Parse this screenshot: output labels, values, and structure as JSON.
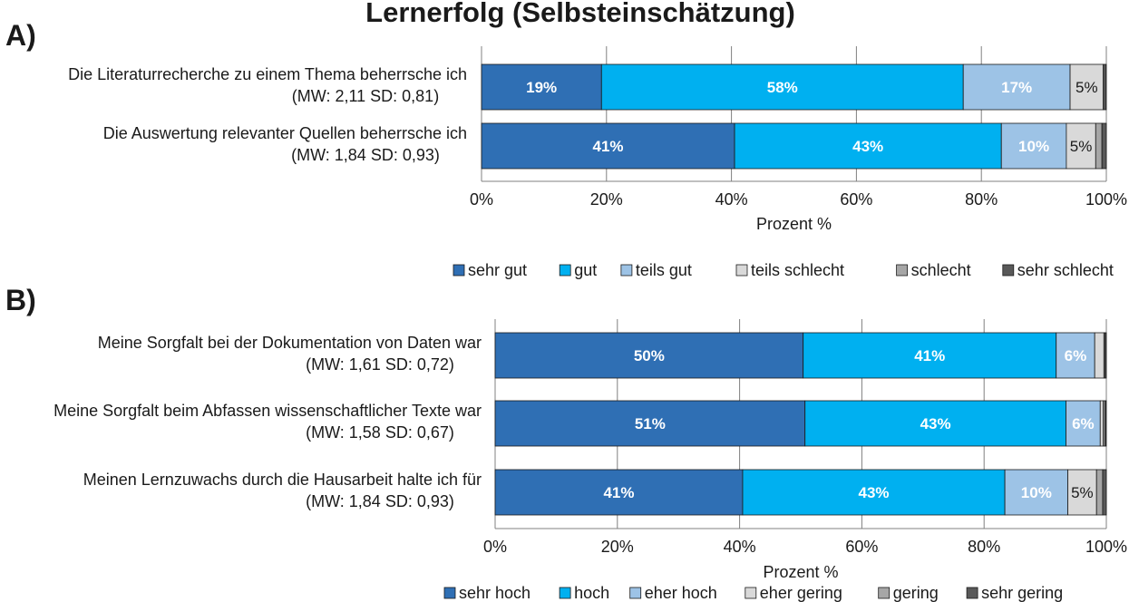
{
  "title": "Lernerfolg (Selbsteinschätzung)",
  "colors": {
    "c1": "#2f6fb4",
    "c2": "#00b0f0",
    "c3": "#9dc3e6",
    "c4": "#d9d9d9",
    "c5": "#a6a6a6",
    "c6": "#595959"
  },
  "chart_data": [
    {
      "type": "bar",
      "orientation": "horizontal",
      "stacked": true,
      "panel_label": "A)",
      "xlabel": "Prozent %",
      "xlim": [
        0,
        100
      ],
      "xticks": [
        "0%",
        "20%",
        "40%",
        "60%",
        "80%",
        "100%"
      ],
      "grid": true,
      "legend_position": "bottom",
      "categories": [
        "Die Literaturrecherche zu einem Thema beherrsche ich",
        "Die Auswertung relevanter Quellen beherrsche ich"
      ],
      "category_stats": [
        "(MW: 2,11 SD: 0,81)",
        "(MW: 1,84 SD: 0,93)"
      ],
      "series": [
        {
          "name": "sehr gut",
          "values": [
            19.2,
            40.5
          ],
          "labels": [
            "19%",
            "41%"
          ]
        },
        {
          "name": "gut",
          "values": [
            57.9,
            42.7
          ],
          "labels": [
            "58%",
            "43%"
          ]
        },
        {
          "name": "teils gut",
          "values": [
            17.1,
            10.4
          ],
          "labels": [
            "17%",
            "10%"
          ]
        },
        {
          "name": "teils schlecht",
          "values": [
            5.3,
            4.7
          ],
          "labels": [
            "5%",
            "5%"
          ]
        },
        {
          "name": "schlecht",
          "values": [
            0.2,
            1.0
          ],
          "labels": [
            "",
            ""
          ]
        },
        {
          "name": "sehr schlecht",
          "values": [
            0.3,
            0.7
          ],
          "labels": [
            "",
            ""
          ]
        }
      ]
    },
    {
      "type": "bar",
      "orientation": "horizontal",
      "stacked": true,
      "panel_label": "B)",
      "xlabel": "Prozent %",
      "xlim": [
        0,
        100
      ],
      "xticks": [
        "0%",
        "20%",
        "40%",
        "60%",
        "80%",
        "100%"
      ],
      "grid": true,
      "legend_position": "bottom",
      "categories": [
        "Meine Sorgfalt bei der Dokumentation von Daten war",
        "Meine Sorgfalt beim Abfassen wissenschaftlicher Texte war",
        "Meinen Lernzuwachs durch die Hausarbeit halte ich für"
      ],
      "category_stats": [
        "(MW: 1,61 SD: 0,72)",
        "(MW: 1,58 SD: 0,67)",
        "(MW: 1,84 SD: 0,93)"
      ],
      "series": [
        {
          "name": "sehr hoch",
          "values": [
            50.4,
            50.7,
            40.5
          ],
          "labels": [
            "50%",
            "51%",
            "41%"
          ]
        },
        {
          "name": "hoch",
          "values": [
            41.4,
            42.7,
            42.9
          ],
          "labels": [
            "41%",
            "43%",
            "43%"
          ]
        },
        {
          "name": "eher hoch",
          "values": [
            6.3,
            5.6,
            10.3
          ],
          "labels": [
            "6%",
            "6%",
            "10%"
          ]
        },
        {
          "name": "eher gering",
          "values": [
            1.5,
            0.5,
            4.7
          ],
          "labels": [
            "",
            "",
            "5%"
          ]
        },
        {
          "name": "gering",
          "values": [
            0.2,
            0.3,
            1.0
          ],
          "labels": [
            "",
            "",
            ""
          ]
        },
        {
          "name": "sehr gering",
          "values": [
            0.2,
            0.2,
            0.6
          ],
          "labels": [
            "",
            "",
            ""
          ]
        }
      ]
    }
  ]
}
